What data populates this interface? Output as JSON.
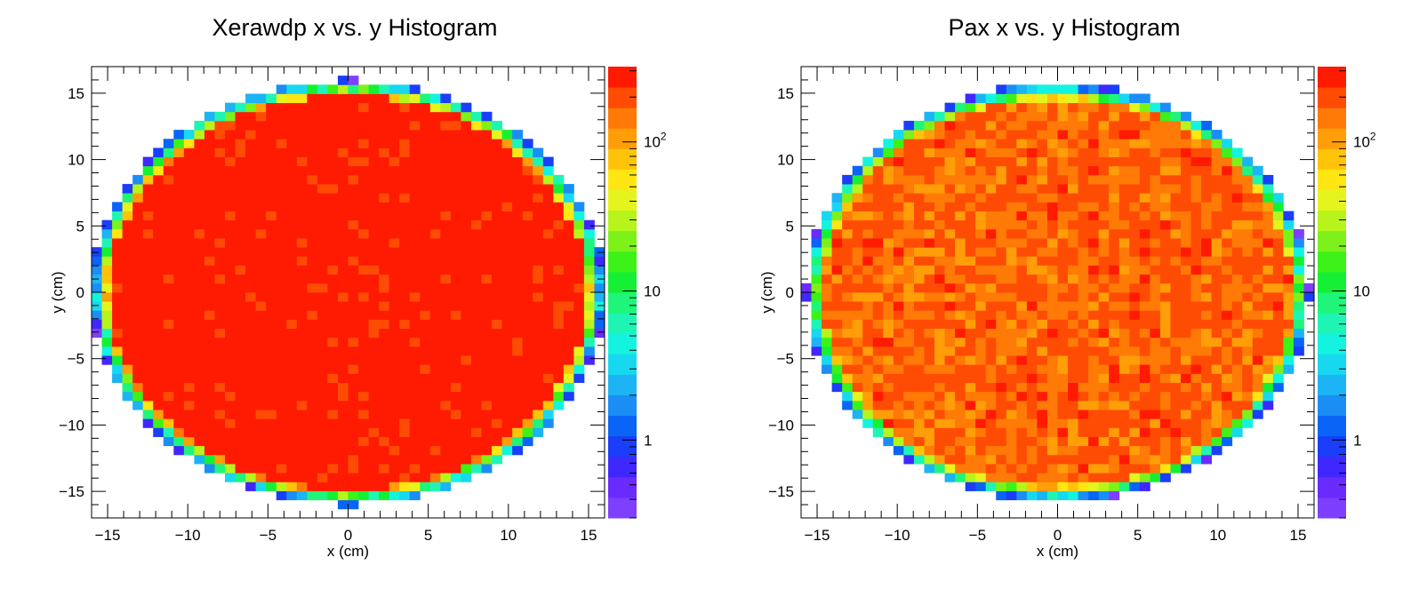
{
  "colors": {
    "palette": [
      "#7f3fff",
      "#6a2bff",
      "#3f28ff",
      "#1a3ef9",
      "#0a64f6",
      "#1b8ef6",
      "#1cb4f4",
      "#18d8f0",
      "#14f3e0",
      "#1ef5b4",
      "#1ef57a",
      "#16f034",
      "#3cf218",
      "#7cf21a",
      "#b6f41c",
      "#e6f41e",
      "#ffe612",
      "#ffc40a",
      "#ff9e08",
      "#ff7a06",
      "#ff4c04",
      "#ff1a02"
    ],
    "frame": "#000000",
    "background": "#ffffff"
  },
  "chart_data": [
    {
      "type": "heatmap",
      "title": "Xerawdp x vs. y Histogram",
      "xlabel": "x (cm)",
      "ylabel": "y (cm)",
      "xlim": [
        -16,
        16
      ],
      "ylim": [
        -17,
        17
      ],
      "xticks": [
        "−15",
        "−10",
        "−5",
        "0",
        "5",
        "10",
        "15"
      ],
      "yticks": [
        "15",
        "10",
        "5",
        "0",
        "−5",
        "−10",
        "−15"
      ],
      "zscale": "log",
      "zlim": [
        0.3,
        320
      ],
      "zticks": [
        {
          "value": 1,
          "label": "1"
        },
        {
          "value": 10,
          "label": "10"
        },
        {
          "value": 100,
          "label": "10",
          "sup": "2"
        }
      ],
      "bins": {
        "nx": 50,
        "ny": 50,
        "x": [
          -16,
          16
        ],
        "y": [
          -17,
          17
        ]
      },
      "description": "Uniform circular distribution of radius ~15.5 cm, interior saturated at ~300 counts per bin, edge bins 1-100 counts",
      "interior_counts": 300,
      "radius": 15.5
    },
    {
      "type": "heatmap",
      "title": "Pax x vs. y Histogram",
      "xlabel": "x (cm)",
      "ylabel": "y (cm)",
      "xlim": [
        -16,
        16
      ],
      "ylim": [
        -17,
        17
      ],
      "xticks": [
        "−15",
        "−10",
        "−5",
        "0",
        "5",
        "10",
        "15"
      ],
      "yticks": [
        "15",
        "10",
        "5",
        "0",
        "−5",
        "−10",
        "−15"
      ],
      "zscale": "log",
      "zlim": [
        0.3,
        320
      ],
      "zticks": [
        {
          "value": 1,
          "label": "1"
        },
        {
          "value": 10,
          "label": "10"
        },
        {
          "value": 100,
          "label": "10",
          "sup": "2"
        }
      ],
      "bins": {
        "nx": 50,
        "ny": 50,
        "x": [
          -16,
          16
        ],
        "y": [
          -17,
          17
        ]
      },
      "description": "Uniform circular distribution of radius ~15.2 cm, interior ~100-250 counts per bin with fluctuations, edge bins 1-50 counts",
      "interior_counts": 150,
      "radius": 15.2
    }
  ]
}
